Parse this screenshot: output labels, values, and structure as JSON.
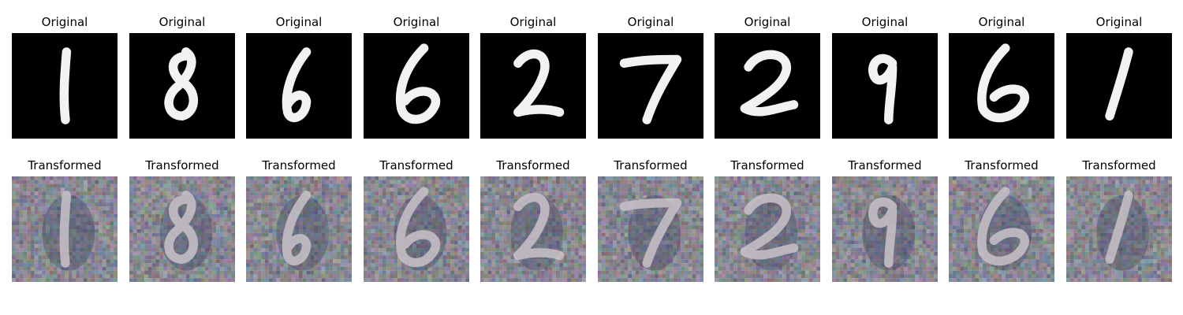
{
  "row_titles": {
    "original": "Original",
    "transformed": "Transformed"
  },
  "samples": [
    {
      "digit": "1"
    },
    {
      "digit": "8"
    },
    {
      "digit": "6"
    },
    {
      "digit": "6"
    },
    {
      "digit": "2"
    },
    {
      "digit": "7"
    },
    {
      "digit": "2"
    },
    {
      "digit": "9"
    },
    {
      "digit": "6"
    },
    {
      "digit": "1"
    }
  ],
  "colors": {
    "original_bg": "#000000",
    "original_stroke": "#f2f2f2",
    "transformed_bg": "#7f7f86",
    "transformed_stroke": "#c9c2c8"
  }
}
